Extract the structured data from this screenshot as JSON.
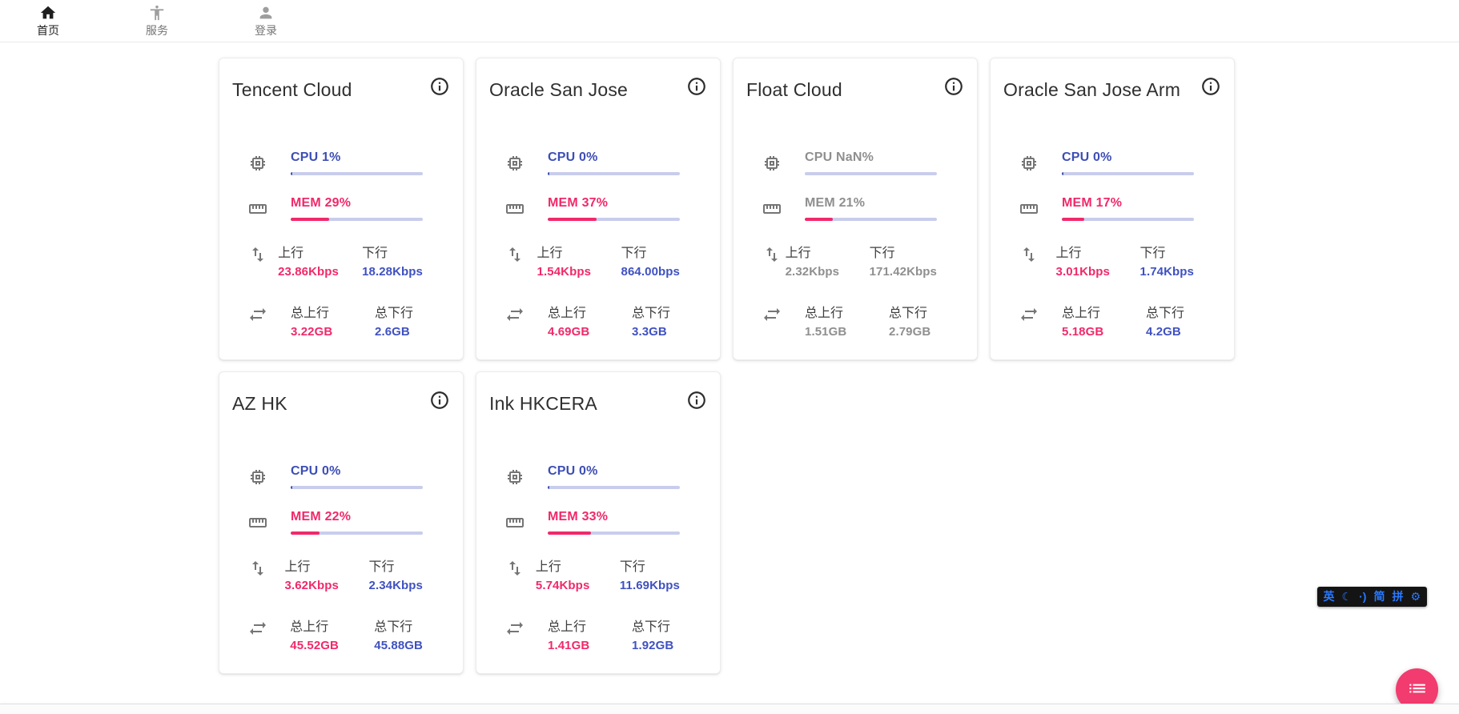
{
  "nav": {
    "home": {
      "label": "首页"
    },
    "services": {
      "label": "服务"
    },
    "login": {
      "label": "登录"
    }
  },
  "labels": {
    "up": "上行",
    "down": "下行",
    "total_up": "总上行",
    "total_down": "总下行"
  },
  "servers": [
    {
      "name": "Tencent Cloud",
      "cpu_label": "CPU 1%",
      "cpu_pct": 1,
      "mem_label": "MEM 29%",
      "mem_pct": 29,
      "up_speed": "23.86Kbps",
      "down_speed": "18.28Kbps",
      "total_up": "3.22GB",
      "total_down": "2.6GB",
      "offline": false
    },
    {
      "name": "Oracle San Jose",
      "cpu_label": "CPU 0%",
      "cpu_pct": 0,
      "mem_label": "MEM 37%",
      "mem_pct": 37,
      "up_speed": "1.54Kbps",
      "down_speed": "864.00bps",
      "total_up": "4.69GB",
      "total_down": "3.3GB",
      "offline": false
    },
    {
      "name": "Float Cloud",
      "cpu_label": "CPU NaN%",
      "cpu_pct": null,
      "mem_label": "MEM 21%",
      "mem_pct": 21,
      "up_speed": "2.32Kbps",
      "down_speed": "171.42Kbps",
      "total_up": "1.51GB",
      "total_down": "2.79GB",
      "offline": true
    },
    {
      "name": "Oracle San Jose Arm",
      "cpu_label": "CPU 0%",
      "cpu_pct": 0,
      "mem_label": "MEM 17%",
      "mem_pct": 17,
      "up_speed": "3.01Kbps",
      "down_speed": "1.74Kbps",
      "total_up": "5.18GB",
      "total_down": "4.2GB",
      "offline": false
    },
    {
      "name": "AZ HK",
      "cpu_label": "CPU 0%",
      "cpu_pct": 0,
      "mem_label": "MEM 22%",
      "mem_pct": 22,
      "up_speed": "3.62Kbps",
      "down_speed": "2.34Kbps",
      "total_up": "45.52GB",
      "total_down": "45.88GB",
      "offline": false
    },
    {
      "name": "Ink HKCERA",
      "cpu_label": "CPU 0%",
      "cpu_pct": 0,
      "mem_label": "MEM 33%",
      "mem_pct": 33,
      "up_speed": "5.74Kbps",
      "down_speed": "11.69Kbps",
      "total_up": "1.41GB",
      "total_down": "1.92GB",
      "offline": false
    }
  ],
  "ime": {
    "items": [
      "英",
      "☾",
      "·)",
      "简",
      "拼",
      "⚙"
    ]
  },
  "colors": {
    "accent_blue": "#3d4eb5",
    "accent_pink": "#f0296a",
    "bar_track": "#c9cdec",
    "offline_gray": "#8f8f8f",
    "fab_pink": "#f23b6e",
    "ime_blue": "#2979ff"
  }
}
